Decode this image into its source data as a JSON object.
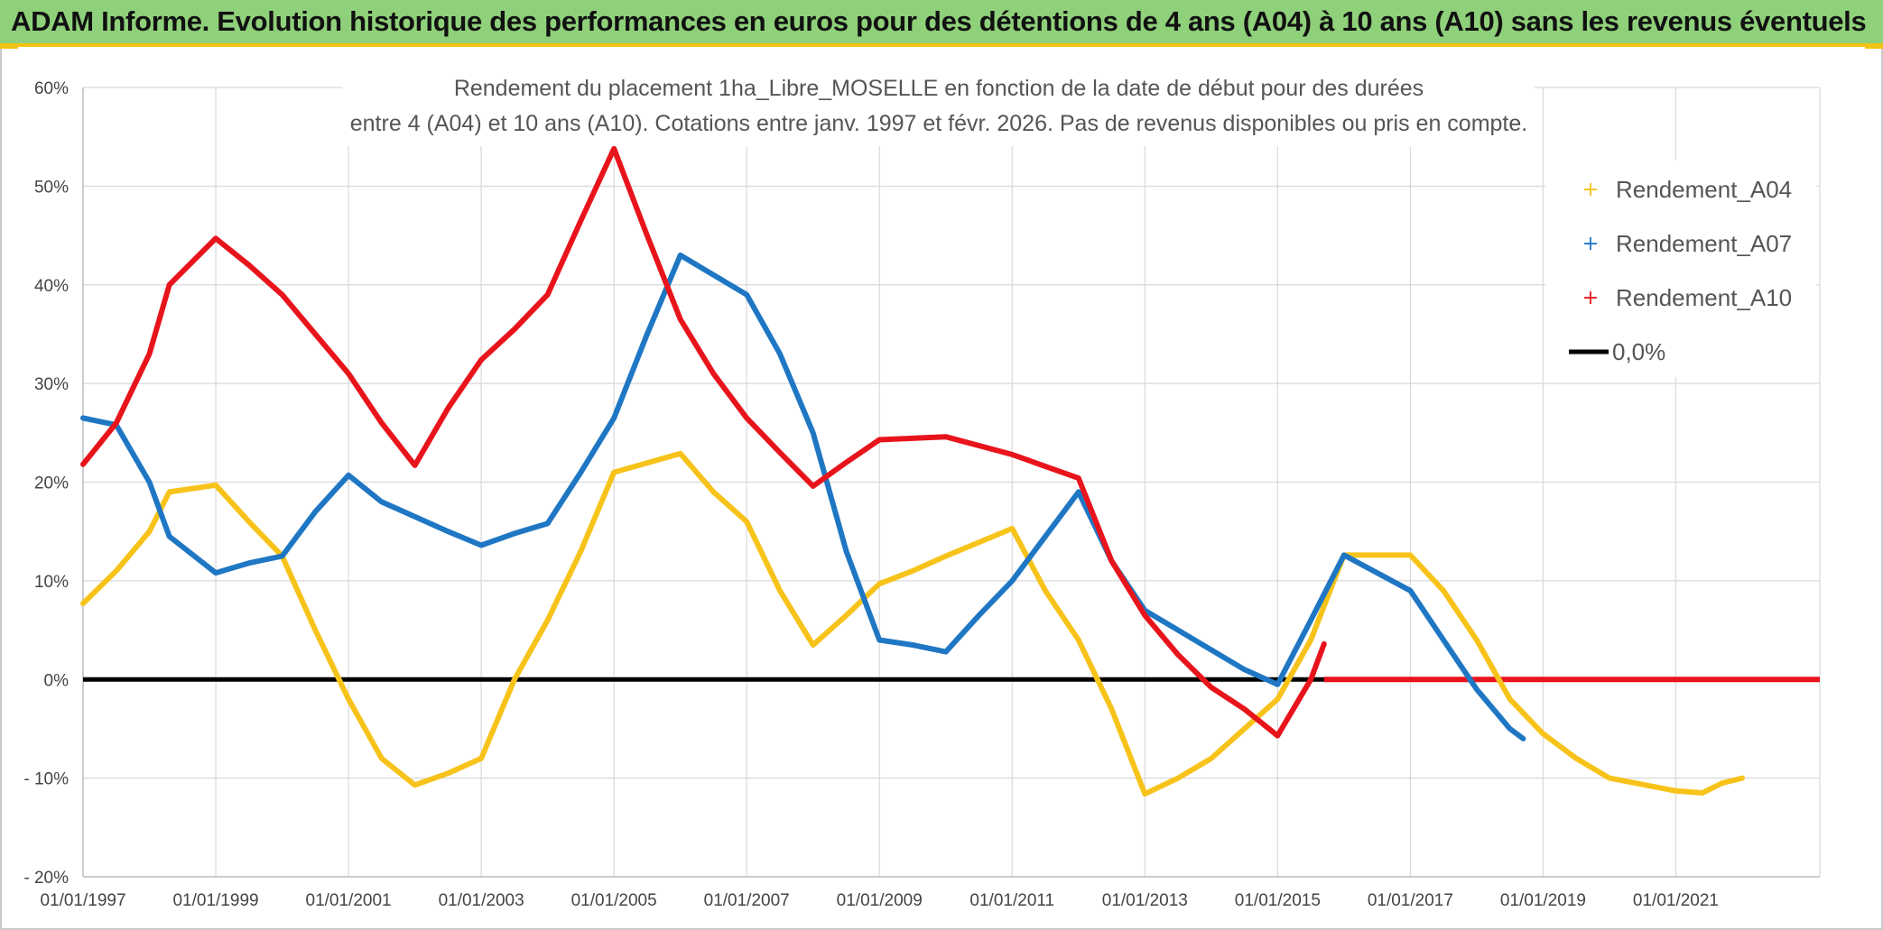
{
  "header": {
    "title": "ADAM Informe. Evolution historique des performances en euros pour des détentions de 4 ans (A04) à 10 ans (A10) sans les revenus éventuels"
  },
  "chart_data": {
    "type": "line",
    "title_lines": [
      "Rendement du placement 1ha_Libre_MOSELLE en fonction de la date de début pour des durées",
      "entre 4 (A04) et 10 ans (A10). Cotations entre janv. 1997 et févr. 2026. Pas de revenus disponibles ou pris en compte."
    ],
    "x_ticks": [
      "01/01/1997",
      "01/01/1999",
      "01/01/2001",
      "01/01/2003",
      "01/01/2005",
      "01/01/2007",
      "01/01/2009",
      "01/01/2011",
      "01/01/2013",
      "01/01/2015",
      "01/01/2017",
      "01/01/2019",
      "01/01/2021"
    ],
    "xlim": [
      1997.0,
      2023.17
    ],
    "ylim": [
      -20,
      60
    ],
    "y_ticks": [
      {
        "v": 60,
        "label": "60%"
      },
      {
        "v": 50,
        "label": "50%"
      },
      {
        "v": 40,
        "label": "40%"
      },
      {
        "v": 30,
        "label": "30%"
      },
      {
        "v": 20,
        "label": "20%"
      },
      {
        "v": 10,
        "label": "10%"
      },
      {
        "v": 0,
        "label": "0%"
      },
      {
        "v": -10,
        "label": "- 10%"
      },
      {
        "v": -20,
        "label": "- 20%"
      }
    ],
    "grid": true,
    "legend_position": "top-right",
    "series": [
      {
        "name": "Rendement_A04",
        "color": "#f7c31a",
        "points": [
          [
            1997.0,
            7.7
          ],
          [
            1997.5,
            11
          ],
          [
            1998.0,
            15
          ],
          [
            1998.3,
            19
          ],
          [
            1999.0,
            19.7
          ],
          [
            1999.5,
            16
          ],
          [
            2000.0,
            12.5
          ],
          [
            2000.5,
            5
          ],
          [
            2001.0,
            -2
          ],
          [
            2001.5,
            -8
          ],
          [
            2002.0,
            -10.7
          ],
          [
            2002.5,
            -9.5
          ],
          [
            2003.0,
            -8
          ],
          [
            2003.5,
            0
          ],
          [
            2004.0,
            6
          ],
          [
            2004.5,
            13
          ],
          [
            2005.0,
            21
          ],
          [
            2006.0,
            22.9
          ],
          [
            2006.5,
            19
          ],
          [
            2007.0,
            16
          ],
          [
            2007.5,
            9
          ],
          [
            2008.0,
            3.5
          ],
          [
            2008.5,
            6.5
          ],
          [
            2009.0,
            9.7
          ],
          [
            2009.5,
            11
          ],
          [
            2010.0,
            12.5
          ],
          [
            2011.0,
            15.3
          ],
          [
            2011.5,
            9
          ],
          [
            2012.0,
            4
          ],
          [
            2012.5,
            -3
          ],
          [
            2013.0,
            -11.6
          ],
          [
            2013.5,
            -10
          ],
          [
            2014.0,
            -8
          ],
          [
            2014.5,
            -5
          ],
          [
            2015.0,
            -2
          ],
          [
            2015.5,
            4
          ],
          [
            2016.0,
            12.6
          ],
          [
            2017.0,
            12.6
          ],
          [
            2017.5,
            9
          ],
          [
            2018.0,
            4
          ],
          [
            2018.5,
            -2
          ],
          [
            2019.0,
            -5.5
          ],
          [
            2019.5,
            -8
          ],
          [
            2020.0,
            -10
          ],
          [
            2021.0,
            -11.3
          ],
          [
            2021.4,
            -11.5
          ],
          [
            2021.7,
            -10.5
          ],
          [
            2022.0,
            -10
          ]
        ]
      },
      {
        "name": "Rendement_A07",
        "color": "#1f77c4",
        "points": [
          [
            1997.0,
            26.5
          ],
          [
            1997.5,
            25.8
          ],
          [
            1998.0,
            20
          ],
          [
            1998.3,
            14.5
          ],
          [
            1999.0,
            10.8
          ],
          [
            1999.5,
            11.8
          ],
          [
            2000.0,
            12.5
          ],
          [
            2000.5,
            17
          ],
          [
            2001.0,
            20.7
          ],
          [
            2001.5,
            18
          ],
          [
            2002.0,
            16.5
          ],
          [
            2002.5,
            15
          ],
          [
            2003.0,
            13.6
          ],
          [
            2003.5,
            14.8
          ],
          [
            2004.0,
            15.8
          ],
          [
            2004.5,
            21
          ],
          [
            2005.0,
            26.5
          ],
          [
            2005.5,
            35
          ],
          [
            2006.0,
            43
          ],
          [
            2007.0,
            39
          ],
          [
            2007.5,
            33
          ],
          [
            2008.0,
            25
          ],
          [
            2008.5,
            13
          ],
          [
            2009.0,
            4
          ],
          [
            2009.5,
            3.5
          ],
          [
            2010.0,
            2.8
          ],
          [
            2010.5,
            6.5
          ],
          [
            2011.0,
            10
          ],
          [
            2011.5,
            14.5
          ],
          [
            2012.0,
            19
          ],
          [
            2012.5,
            12
          ],
          [
            2013.0,
            7
          ],
          [
            2013.5,
            5
          ],
          [
            2014.0,
            3
          ],
          [
            2014.5,
            1
          ],
          [
            2015.0,
            -0.5
          ],
          [
            2015.5,
            6
          ],
          [
            2016.0,
            12.6
          ],
          [
            2017.0,
            9
          ],
          [
            2017.5,
            4
          ],
          [
            2018.0,
            -1
          ],
          [
            2018.5,
            -5
          ],
          [
            2018.7,
            -6
          ]
        ]
      },
      {
        "name": "Rendement_A10",
        "color": "#e8141c",
        "points": [
          [
            1997.0,
            21.8
          ],
          [
            1997.5,
            26
          ],
          [
            1998.0,
            33
          ],
          [
            1998.3,
            40
          ],
          [
            1999.0,
            44.7
          ],
          [
            1999.5,
            42
          ],
          [
            2000.0,
            39
          ],
          [
            2000.5,
            35
          ],
          [
            2001.0,
            31
          ],
          [
            2001.5,
            26
          ],
          [
            2002.0,
            21.7
          ],
          [
            2002.5,
            27.5
          ],
          [
            2003.0,
            32.4
          ],
          [
            2003.5,
            35.5
          ],
          [
            2004.0,
            39
          ],
          [
            2004.5,
            46.5
          ],
          [
            2005.0,
            53.8
          ],
          [
            2005.5,
            45
          ],
          [
            2006.0,
            36.5
          ],
          [
            2006.5,
            31
          ],
          [
            2007.0,
            26.5
          ],
          [
            2007.5,
            23
          ],
          [
            2008.0,
            19.6
          ],
          [
            2008.5,
            22
          ],
          [
            2009.0,
            24.3
          ],
          [
            2010.0,
            24.6
          ],
          [
            2011.0,
            22.8
          ],
          [
            2012.0,
            20.4
          ],
          [
            2012.5,
            12
          ],
          [
            2013.0,
            6.5
          ],
          [
            2013.5,
            2.5
          ],
          [
            2014.0,
            -0.8
          ],
          [
            2014.5,
            -3
          ],
          [
            2015.0,
            -5.7
          ],
          [
            2015.5,
            0
          ],
          [
            2015.7,
            3.6
          ]
        ]
      },
      {
        "name": "0,0%",
        "color": "#000000",
        "points": [
          [
            1997.0,
            0
          ],
          [
            2023.17,
            0
          ]
        ]
      }
    ],
    "a10_zero_tail": {
      "from": 2015.7,
      "to": 2023.17,
      "value": 0,
      "color": "#e8141c"
    }
  }
}
